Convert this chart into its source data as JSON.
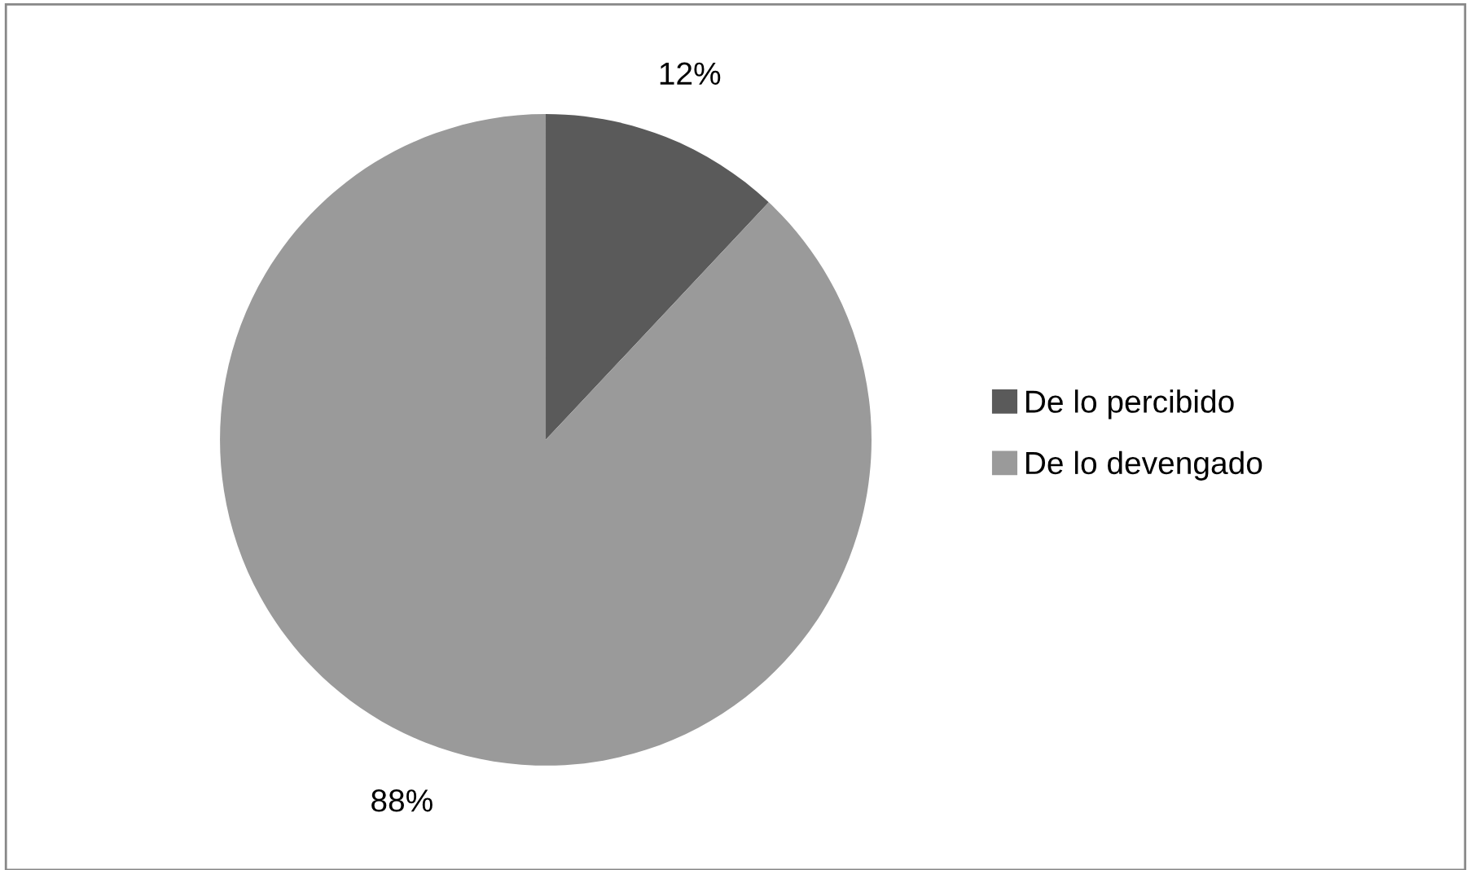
{
  "chart_data": {
    "type": "pie",
    "categories": [
      "De lo percibido",
      "De lo devengado"
    ],
    "values": [
      12,
      88
    ],
    "colors": [
      "#5a5a5a",
      "#9a9a9a"
    ],
    "value_labels": [
      "12%",
      "88%"
    ],
    "legend": "right"
  }
}
